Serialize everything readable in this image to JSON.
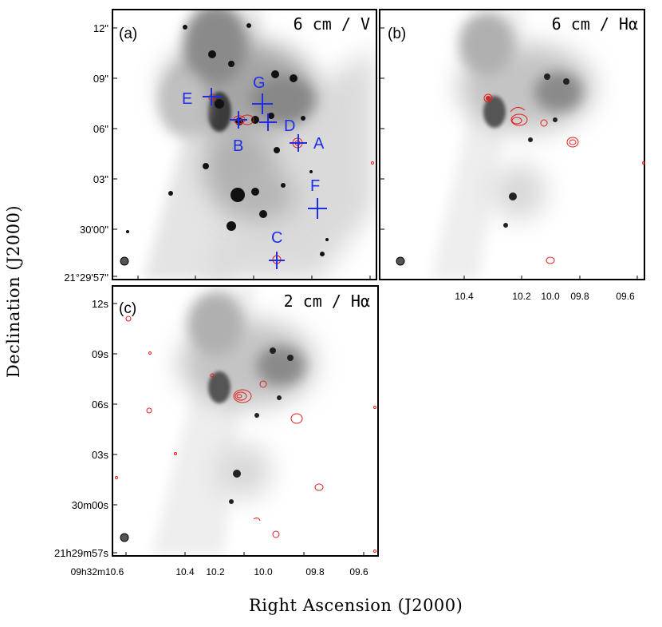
{
  "figure": {
    "y_axis_label": "Declination (J2000)",
    "x_axis_label": "Right Ascension (J2000)"
  },
  "panels": {
    "a": {
      "tag": "(a)",
      "title": "6 cm / V",
      "dec_ticks": [
        "12\"",
        "09\"",
        "06\"",
        "03\"",
        "30'00\"",
        "21°29'57\""
      ],
      "sources": [
        "A",
        "B",
        "C",
        "D",
        "E",
        "F",
        "G"
      ]
    },
    "b": {
      "tag": "(b)",
      "title": "6 cm / Hα",
      "ra_ticks": [
        "10.4",
        "10.2",
        "10.0",
        "09.8",
        "09.6"
      ]
    },
    "c": {
      "tag": "(c)",
      "title": "2 cm / Hα",
      "dec_ticks": [
        "12s",
        "09s",
        "06s",
        "03s",
        "30m00s",
        "21h29m57s"
      ],
      "ra_ticks": [
        "09h32m10.6",
        "10.4",
        "10.2",
        "10.0",
        "09.8",
        "09.6"
      ]
    }
  },
  "colors": {
    "marker": "#1f2ee6",
    "contour": "#e0201c",
    "frame": "#000000",
    "background": "#ffffff"
  }
}
